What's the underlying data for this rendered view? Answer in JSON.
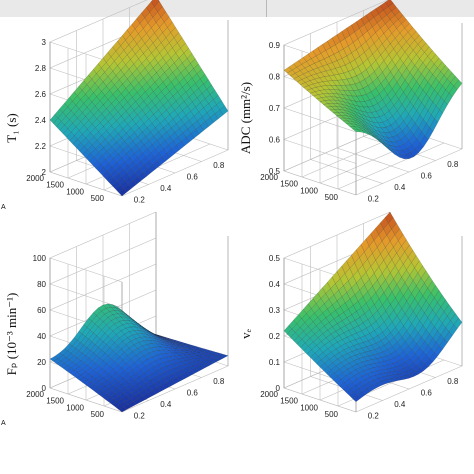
{
  "chart_data": [
    {
      "type": "surface",
      "ylabel": "T₁ (s)",
      "z_ticks": [
        "3",
        "2.8",
        "2.6",
        "2.4",
        "2.2",
        "2"
      ],
      "x_ticks": [
        "0.2",
        "0.4",
        "0.6",
        "0.8"
      ],
      "y_ticks": [
        "500",
        "1000",
        "1500",
        "2000"
      ],
      "x_range": [
        0.1,
        0.9
      ],
      "y_range": [
        200,
        2000
      ],
      "zlim": [
        2.0,
        3.0
      ],
      "corners": {
        "near_low_x": 2.0,
        "near_high_x": 2.3,
        "far_low_x": 2.4,
        "far_high_x": 3.0
      },
      "grid": true
    },
    {
      "type": "surface",
      "ylabel": "ADC (mm²/s)",
      "z_ticks": [
        "0.9",
        "0.8",
        "0.7",
        "0.6",
        "0.5"
      ],
      "x_ticks": [
        "0.2",
        "0.4",
        "0.6",
        "0.8"
      ],
      "y_ticks": [
        "500",
        "1000",
        "1500",
        "2000"
      ],
      "x_range": [
        0.1,
        0.9
      ],
      "y_range": [
        200,
        2000
      ],
      "zlim": [
        0.5,
        0.9
      ],
      "corners": {
        "near_low_x": 0.72,
        "near_high_x": 0.74,
        "far_low_x": 0.82,
        "far_high_x": 0.9
      },
      "minimum": {
        "x": 0.52,
        "y": 250,
        "z": 0.52
      },
      "grid": true
    },
    {
      "type": "surface",
      "ylabel": "Fₚ (10⁻³ min⁻¹)",
      "z_ticks": [
        "100",
        "80",
        "60",
        "40",
        "20",
        "0"
      ],
      "x_ticks": [
        "0.2",
        "0.4",
        "0.6",
        "0.8"
      ],
      "y_ticks": [
        "500",
        "1000",
        "1500",
        "2000"
      ],
      "x_range": [
        0.1,
        0.9
      ],
      "y_range": [
        200,
        2000
      ],
      "zlim": [
        0,
        100
      ],
      "corners": {
        "near_low_x": 0,
        "near_high_x": 8,
        "far_low_x": 20,
        "far_high_x": 2
      },
      "maximum": {
        "x": 0.5,
        "y": 2000,
        "z": 48
      },
      "grid": true
    },
    {
      "type": "surface",
      "ylabel": "vₑ",
      "z_ticks": [
        "0.5",
        "0.4",
        "0.3",
        "0.2",
        "0.1",
        "0"
      ],
      "x_ticks": [
        "0.2",
        "0.4",
        "0.6",
        "0.8"
      ],
      "y_ticks": [
        "500",
        "1000",
        "1500",
        "2000"
      ],
      "x_range": [
        0.1,
        0.9
      ],
      "y_range": [
        200,
        2000
      ],
      "zlim": [
        0,
        0.5
      ],
      "corners": {
        "near_low_x": 0.04,
        "near_high_x": 0.2,
        "far_low_x": 0.22,
        "far_high_x": 0.5
      },
      "minimum": {
        "x": 0.55,
        "y": 250,
        "z": 0.03
      },
      "grid": true
    }
  ],
  "panel_letters": [
    "A",
    "A"
  ],
  "colors": {
    "colormap": [
      "#1a2f9e",
      "#1e63d6",
      "#1fa8b8",
      "#39c06a",
      "#b6c533",
      "#e59b2a",
      "#c04a1e"
    ],
    "mesh_line": "#1a1a1a",
    "box_line": "#bdbdbd",
    "page_top_band": "#e9e9e9"
  }
}
